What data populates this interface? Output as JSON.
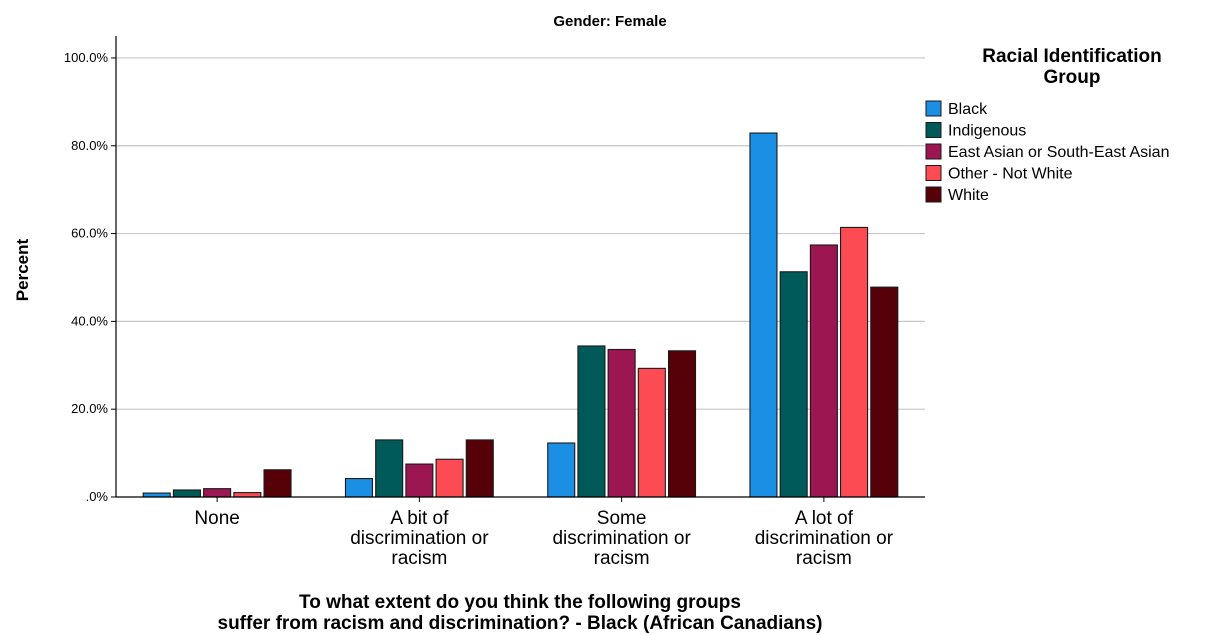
{
  "chart_data": {
    "type": "bar",
    "title": "Gender: Female",
    "xlabel_lines": [
      "To what extent do you think the following groups",
      "suffer from racism and discrimination? - Black (African Canadians)"
    ],
    "ylabel": "Percent",
    "ylim": [
      0,
      105
    ],
    "yticks": [
      0,
      20,
      40,
      60,
      80,
      100
    ],
    "ytick_labels": [
      ".0%",
      "20.0%",
      "40.0%",
      "60.0%",
      "80.0%",
      "100.0%"
    ],
    "grid": true,
    "categories": [
      [
        "None"
      ],
      [
        "A bit of",
        "discrimination or",
        "racism"
      ],
      [
        "Some",
        "discrimination or",
        "racism"
      ],
      [
        "A lot of",
        "discrimination or",
        "racism"
      ]
    ],
    "legend": {
      "title_lines": [
        "Racial Identification",
        "Group"
      ],
      "placement": "right"
    },
    "series": [
      {
        "name": "Black",
        "color": "#1a8fe3",
        "values": [
          0.9,
          4.2,
          12.3,
          82.9
        ]
      },
      {
        "name": "Indigenous",
        "color": "#005a5a",
        "values": [
          1.6,
          13.0,
          34.4,
          51.3
        ]
      },
      {
        "name": "East Asian or South-East Asian",
        "color": "#9c1652",
        "values": [
          1.9,
          7.5,
          33.6,
          57.4
        ]
      },
      {
        "name": "Other - Not White",
        "color": "#fc4b53",
        "values": [
          1.0,
          8.6,
          29.3,
          61.4
        ]
      },
      {
        "name": "White",
        "color": "#560008",
        "values": [
          6.2,
          13.0,
          33.3,
          47.8
        ]
      }
    ]
  }
}
